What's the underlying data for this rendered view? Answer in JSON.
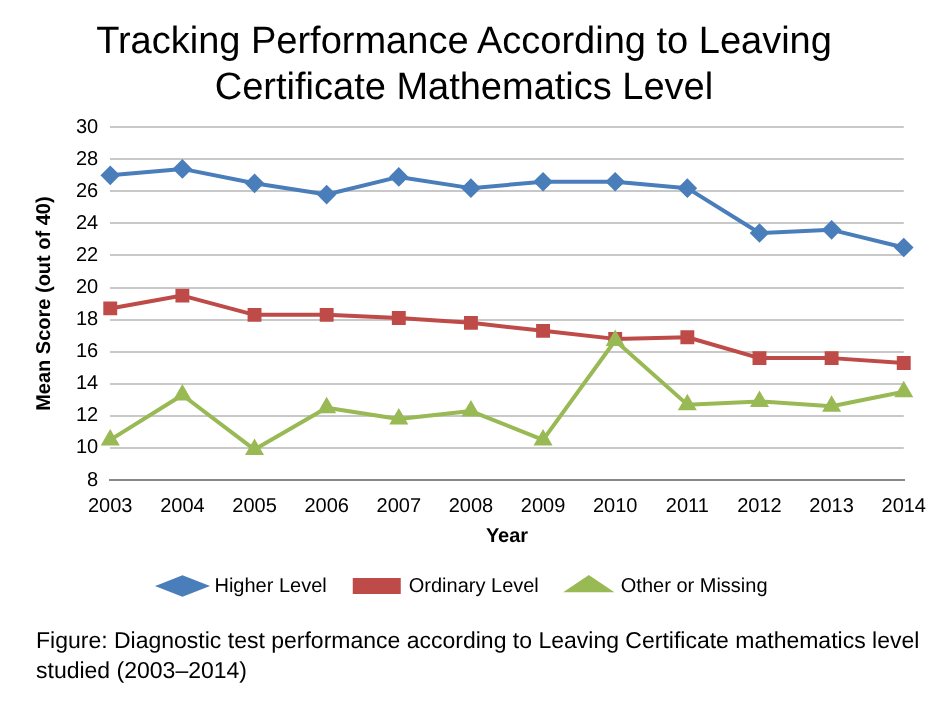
{
  "chart_data": {
    "type": "line",
    "title": [
      "Tracking Performance According to Leaving",
      "Certificate Mathematics Level"
    ],
    "xlabel": "Year",
    "ylabel": "Mean Score (out of 40)",
    "categories": [
      "2003",
      "2004",
      "2005",
      "2006",
      "2007",
      "2008",
      "2009",
      "2010",
      "2011",
      "2012",
      "2013",
      "2014"
    ],
    "series": [
      {
        "name": "Higher Level",
        "color": "#4a7ebb",
        "marker": "diamond",
        "values": [
          27.0,
          27.4,
          26.5,
          25.8,
          26.9,
          26.2,
          26.6,
          26.6,
          26.2,
          23.4,
          23.6,
          22.5
        ]
      },
      {
        "name": "Ordinary Level",
        "color": "#be4b48",
        "marker": "square",
        "values": [
          18.7,
          19.5,
          18.3,
          18.3,
          18.1,
          17.8,
          17.3,
          16.8,
          16.9,
          15.6,
          15.6,
          15.3
        ]
      },
      {
        "name": "Other or Missing",
        "color": "#98b954",
        "marker": "triangle",
        "values": [
          10.5,
          13.3,
          9.9,
          12.5,
          11.8,
          12.3,
          10.5,
          16.7,
          12.7,
          12.9,
          12.6,
          13.5
        ]
      }
    ],
    "ylim": [
      8,
      30
    ],
    "yticks": [
      8,
      10,
      12,
      14,
      16,
      18,
      20,
      22,
      24,
      26,
      28,
      30
    ],
    "grid": "y",
    "legend": "bottom",
    "line_style": "solid",
    "annotations": [
      "Figure: Diagnostic test performance according to Leaving Certificate mathematics level studied (2003–2014)"
    ]
  }
}
